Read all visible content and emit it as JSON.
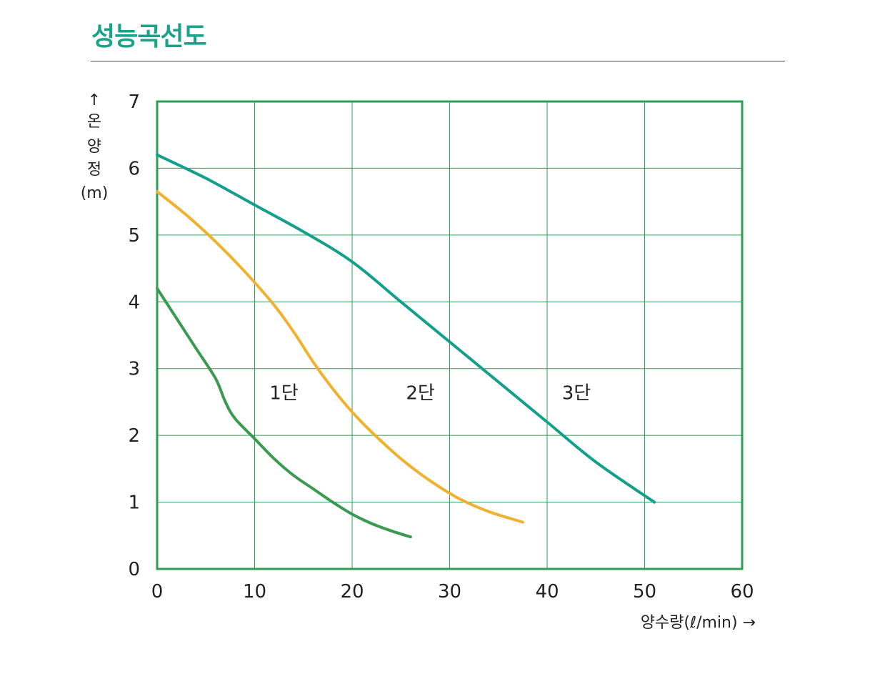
{
  "page": {
    "title": "성능곡선도"
  },
  "colors": {
    "title": "#1aa38a",
    "grid": "#2e9e55",
    "frame": "#2e9e55",
    "stage1": "#3a9a4f",
    "stage2": "#f0b22e",
    "stage3": "#13a08a"
  },
  "chart_data": {
    "type": "line",
    "title": "성능곡선도",
    "xlabel": "양수량(ℓ/min) →",
    "ylabel_chars": [
      "↑",
      "온",
      "양",
      "정",
      "(m)"
    ],
    "xlim": [
      0,
      60
    ],
    "ylim": [
      0,
      7
    ],
    "xticks": [
      "0",
      "10",
      "20",
      "30",
      "40",
      "50",
      "60"
    ],
    "yticks": [
      "0",
      "1",
      "2",
      "3",
      "4",
      "5",
      "6",
      "7"
    ],
    "grid": true,
    "series": [
      {
        "name": "1단",
        "color": "#3a9a4f",
        "x": [
          0,
          2,
          4,
          6,
          7,
          8,
          10,
          12,
          14,
          16,
          18,
          20,
          22,
          24,
          26
        ],
        "y": [
          4.2,
          3.75,
          3.3,
          2.85,
          2.5,
          2.25,
          1.95,
          1.65,
          1.4,
          1.2,
          1.0,
          0.82,
          0.68,
          0.57,
          0.48
        ]
      },
      {
        "name": "2단",
        "color": "#f0b22e",
        "x": [
          0,
          3,
          6,
          9,
          12,
          14,
          16,
          18,
          20,
          22,
          25,
          28,
          31,
          34,
          37.5
        ],
        "y": [
          5.65,
          5.3,
          4.9,
          4.45,
          3.95,
          3.55,
          3.1,
          2.7,
          2.35,
          2.05,
          1.65,
          1.32,
          1.05,
          0.86,
          0.7
        ]
      },
      {
        "name": "3단",
        "color": "#13a08a",
        "x": [
          0,
          5,
          10,
          15,
          20,
          25,
          30,
          35,
          40,
          45,
          51
        ],
        "y": [
          6.2,
          5.85,
          5.45,
          5.05,
          4.6,
          4.0,
          3.4,
          2.8,
          2.2,
          1.6,
          1.0
        ]
      }
    ],
    "annotations": [
      "1단",
      "2단",
      "3단"
    ]
  }
}
